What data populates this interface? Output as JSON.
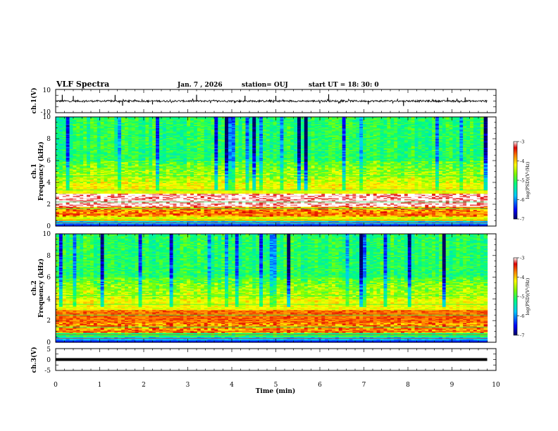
{
  "header": {
    "title": "VLF Spectra",
    "date": "Jan. 7 , 2026",
    "station": "station= OUJ",
    "start": "start UT =  18: 30: 0"
  },
  "chart_data": [
    {
      "type": "line",
      "name": "ch1-waveform",
      "ylabel": "ch.1(V)",
      "ylim": [
        -10,
        10
      ],
      "ytick_labels": [
        "10",
        "-10"
      ],
      "xlim": [
        0,
        10
      ],
      "baseline": 0,
      "spikes_min": [
        0.15,
        0.4,
        1.35,
        1.52,
        2.2,
        3.2,
        4.3,
        5.0,
        6.2,
        7.1,
        7.9,
        8.9,
        9.3
      ]
    },
    {
      "type": "heatmap",
      "name": "ch1-spectrogram",
      "ylabel": "ch.1\nFrequency (kHz)",
      "ylabel_lines": [
        "ch.1",
        "Frequency (kHz)"
      ],
      "ylim": [
        0,
        10
      ],
      "ytick_labels": [
        "0",
        "2",
        "4",
        "6",
        "8",
        "10"
      ],
      "xlim": [
        0,
        10
      ],
      "colorbar": {
        "label": "log(PSD)(V²/Hz)",
        "range": [
          -7,
          -3
        ],
        "tick_labels": [
          "-3",
          "-4",
          "-5",
          "-6",
          "-7"
        ]
      }
    },
    {
      "type": "heatmap",
      "name": "ch2-spectrogram",
      "ylabel": "ch.2\nFrequency (kHz)",
      "ylabel_lines": [
        "ch.2",
        "Frequency (kHz)"
      ],
      "ylim": [
        0,
        10
      ],
      "ytick_labels": [
        "0",
        "2",
        "4",
        "6",
        "8",
        "10"
      ],
      "xlim": [
        0,
        10
      ],
      "colorbar": {
        "label": "log(PSD)(V²/Hz)",
        "range": [
          -7,
          -3
        ],
        "tick_labels": [
          "-3",
          "-4",
          "-5",
          "-6",
          "-7"
        ]
      }
    },
    {
      "type": "line",
      "name": "ch3-waveform",
      "ylabel": "ch.3(V)",
      "ylim": [
        -5,
        5
      ],
      "ytick_labels": [
        "5",
        "0",
        "-5"
      ],
      "xlim": [
        0,
        10
      ],
      "baseline": 0
    }
  ],
  "xaxis": {
    "label": "Time (min)",
    "range": [
      0,
      10
    ],
    "tick_labels": [
      "0",
      "1",
      "2",
      "3",
      "4",
      "5",
      "6",
      "7",
      "8",
      "9",
      "10"
    ],
    "data_end": 9.8
  },
  "colors": {
    "ink": "#000000",
    "background": "#ffffff"
  }
}
